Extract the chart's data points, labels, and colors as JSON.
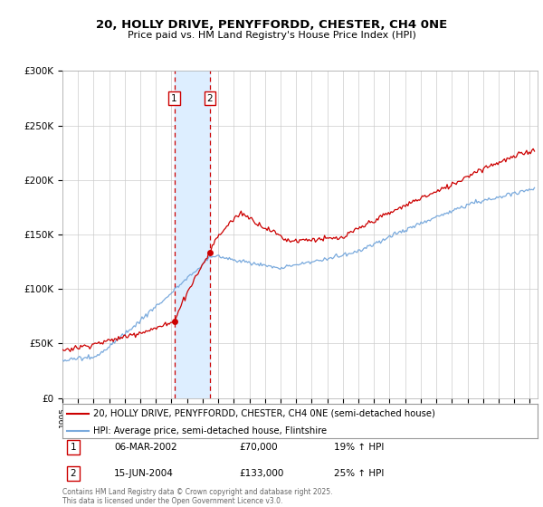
{
  "title1": "20, HOLLY DRIVE, PENYFFORDD, CHESTER, CH4 0NE",
  "title2": "Price paid vs. HM Land Registry's House Price Index (HPI)",
  "legend_label1": "20, HOLLY DRIVE, PENYFFORDD, CHESTER, CH4 0NE (semi-detached house)",
  "legend_label2": "HPI: Average price, semi-detached house, Flintshire",
  "transactions": [
    {
      "date": "06-MAR-2002",
      "price": 70000,
      "hpi_change": "19% ↑ HPI",
      "label": "1"
    },
    {
      "date": "15-JUN-2004",
      "price": 133000,
      "hpi_change": "25% ↑ HPI",
      "label": "2"
    }
  ],
  "transaction_dates_decimal": [
    2002.18,
    2004.46
  ],
  "footer": "Contains HM Land Registry data © Crown copyright and database right 2025.\nThis data is licensed under the Open Government Licence v3.0.",
  "line_color_price": "#cc0000",
  "line_color_hpi": "#7aaadd",
  "vline_color": "#cc0000",
  "vfill_color": "#ddeeff",
  "ylim": [
    0,
    300000
  ],
  "xlim_start": 1995.0,
  "xlim_end": 2025.5,
  "background_color": "#ffffff",
  "label1_box_color": "#cc0000",
  "label2_box_color": "#cc0000"
}
